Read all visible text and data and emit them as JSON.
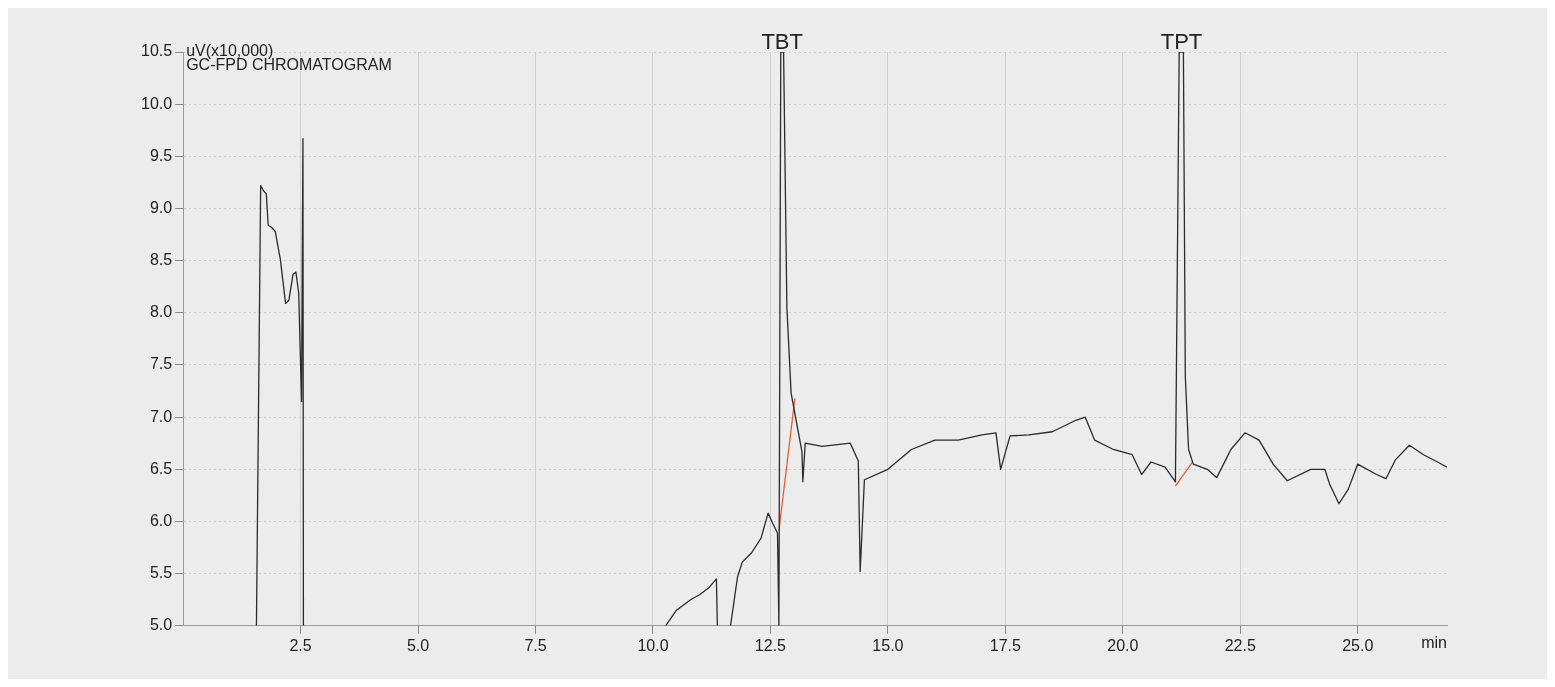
{
  "chart_data": {
    "type": "line",
    "title": "GC-FPD CHROMATOGRAM",
    "ylabel": "uV(x10,000)",
    "xlabel": "min",
    "xlim": [
      0,
      26.9
    ],
    "xticks": [
      2.5,
      {
        "value": 5,
        "label": "5.0"
      },
      7.5,
      {
        "value": 10,
        "label": "10.0"
      },
      12.5,
      {
        "value": 15,
        "label": "15.0"
      },
      17.5,
      {
        "value": 20,
        "label": "20.0"
      },
      22.5,
      {
        "value": 25,
        "label": "25.0"
      }
    ],
    "ylim": [
      5,
      10.5
    ],
    "yticks": [
      {
        "value": 5,
        "label": "5.0"
      },
      5.5,
      {
        "value": 6,
        "label": "6.0"
      },
      6.5,
      {
        "value": 7,
        "label": "7.0"
      },
      7.5,
      {
        "value": 8,
        "label": "8.0"
      },
      8.5,
      {
        "value": 9,
        "label": "9.0"
      },
      9.5,
      {
        "value": 10,
        "label": "10.0"
      },
      10.5
    ],
    "grid": true,
    "marker": "none",
    "line_style": "solid",
    "legend": false,
    "annotations": [
      {
        "text": "TBT",
        "x": 12.75,
        "y": 10.5
      },
      {
        "text": "TPT",
        "x": 21.25,
        "y": 10.5
      }
    ],
    "series": [
      {
        "color": "#2b2b2b",
        "x": [
          1.56,
          1.65,
          1.71,
          1.77,
          1.81,
          1.88,
          1.96,
          2.07,
          2.18,
          2.25,
          2.34,
          2.4,
          2.46,
          2.52,
          2.55,
          2.56,
          2.6,
          10.27,
          10.5,
          10.8,
          11.0,
          11.2,
          11.35,
          11.37,
          11.5,
          11.65,
          11.8,
          11.9,
          12.1,
          12.3,
          12.45,
          12.55,
          12.65,
          12.68,
          12.72,
          12.78,
          12.85,
          12.94,
          13.17,
          13.19,
          13.24,
          13.6,
          14.2,
          14.37,
          14.41,
          14.5,
          15.0,
          15.5,
          16.0,
          16.5,
          17.0,
          17.3,
          17.4,
          17.6,
          18.0,
          18.5,
          19.0,
          19.2,
          19.4,
          19.8,
          20.2,
          20.4,
          20.6,
          20.9,
          21.12,
          21.2,
          21.29,
          21.33,
          21.4,
          21.5,
          21.8,
          22.0,
          22.3,
          22.6,
          22.9,
          23.2,
          23.5,
          24.0,
          24.3,
          24.4,
          24.6,
          24.8,
          25.0,
          25.4,
          25.6,
          25.8,
          26.1,
          26.4,
          26.7,
          26.9
        ],
        "values": [
          5.0,
          9.22,
          9.17,
          9.14,
          8.84,
          8.82,
          8.78,
          8.51,
          8.09,
          8.12,
          8.37,
          8.39,
          8.19,
          7.15,
          9.67,
          5.0,
          null,
          5.0,
          5.15,
          5.25,
          5.3,
          5.37,
          5.45,
          5.0,
          null,
          5.0,
          5.47,
          5.61,
          5.7,
          5.84,
          6.08,
          5.98,
          5.89,
          5.0,
          10.5,
          10.5,
          8.05,
          7.23,
          6.67,
          6.38,
          6.75,
          6.72,
          6.75,
          6.58,
          5.52,
          6.4,
          6.5,
          6.69,
          6.78,
          6.78,
          6.83,
          6.85,
          6.5,
          6.82,
          6.83,
          6.86,
          6.97,
          7.0,
          6.78,
          6.69,
          6.64,
          6.45,
          6.57,
          6.52,
          6.38,
          10.5,
          10.5,
          7.39,
          6.69,
          6.55,
          6.5,
          6.42,
          6.69,
          6.85,
          6.78,
          6.55,
          6.39,
          6.5,
          6.5,
          6.36,
          6.17,
          6.31,
          6.55,
          6.45,
          6.41,
          6.59,
          6.73,
          6.64,
          6.57,
          6.52
        ]
      },
      {
        "color": "#e0603c",
        "x": [
          12.68,
          13.02
        ],
        "values": [
          5.91,
          7.18
        ]
      },
      {
        "color": "#e0603c",
        "x": [
          21.12,
          21.48
        ],
        "values": [
          6.34,
          6.57
        ]
      }
    ]
  }
}
